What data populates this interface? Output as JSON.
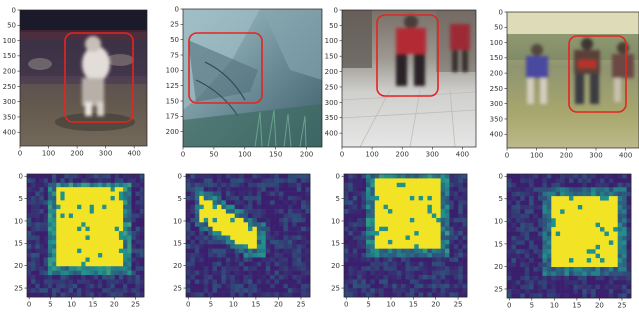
{
  "panels": [
    {
      "photo": {
        "scene": "crowd-stadium",
        "x_ticks": [
          "0",
          "100",
          "200",
          "300",
          "400"
        ],
        "y_ticks": [
          "0",
          "50",
          "100",
          "150",
          "200",
          "250",
          "300",
          "350",
          "400"
        ]
      },
      "heatmap": {
        "x_ticks": [
          "0",
          "5",
          "10",
          "15",
          "20",
          "25"
        ],
        "y_ticks": [
          "0",
          "5",
          "10",
          "15",
          "20",
          "25"
        ]
      }
    },
    {
      "photo": {
        "scene": "rock-cliff",
        "x_ticks": [
          "0",
          "50",
          "100",
          "150",
          "200"
        ],
        "y_ticks": [
          "0",
          "25",
          "50",
          "75",
          "100",
          "125",
          "150",
          "175",
          "200"
        ]
      },
      "heatmap": {
        "x_ticks": [
          "0",
          "5",
          "10",
          "15",
          "20",
          "25"
        ],
        "y_ticks": [
          "0",
          "5",
          "10",
          "15",
          "20",
          "25"
        ]
      }
    },
    {
      "photo": {
        "scene": "street-red-jacket",
        "x_ticks": [
          "0",
          "100",
          "200",
          "300",
          "400"
        ],
        "y_ticks": [
          "0",
          "50",
          "100",
          "150",
          "200",
          "250",
          "300",
          "350",
          "400"
        ]
      },
      "heatmap": {
        "x_ticks": [
          "0",
          "5",
          "10",
          "15",
          "20",
          "25"
        ],
        "y_ticks": [
          "0",
          "5",
          "10",
          "15",
          "20",
          "25"
        ]
      }
    },
    {
      "photo": {
        "scene": "track-runners",
        "x_ticks": [
          "0",
          "100",
          "200",
          "300",
          "400"
        ],
        "y_ticks": [
          "0",
          "50",
          "100",
          "150",
          "200",
          "250",
          "300",
          "350",
          "400"
        ]
      },
      "heatmap": {
        "x_ticks": [
          "0",
          "5",
          "10",
          "15",
          "20",
          "25"
        ],
        "y_ticks": [
          "0",
          "5",
          "10",
          "15",
          "20",
          "25"
        ]
      }
    }
  ],
  "colors": {
    "bbox": "#e8231e",
    "heat_low": "#3b1f6e",
    "heat_mid": "#21918c",
    "heat_high": "#f2e425"
  }
}
